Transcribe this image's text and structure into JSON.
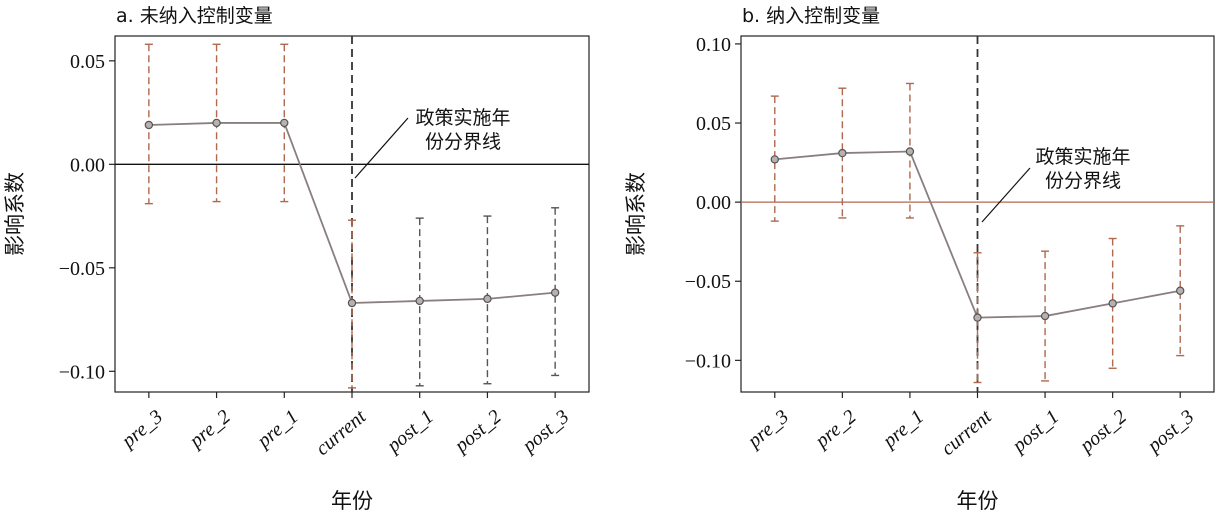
{
  "chart_data": [
    {
      "type": "line",
      "title": "a. 未纳入控制变量",
      "xlabel": "年份",
      "ylabel": "影响系数",
      "categories": [
        "pre_3",
        "pre_2",
        "pre_1",
        "current",
        "post_1",
        "post_2",
        "post_3"
      ],
      "series": [
        {
          "values": [
            0.019,
            0.02,
            0.02,
            -0.067,
            -0.066,
            -0.065,
            -0.062
          ],
          "ci_low": [
            -0.019,
            -0.018,
            -0.018,
            -0.108,
            -0.107,
            -0.106,
            -0.102
          ],
          "ci_high": [
            0.058,
            0.058,
            0.058,
            -0.027,
            -0.026,
            -0.025,
            -0.021
          ]
        }
      ],
      "ylim": [
        -0.11,
        0.062
      ],
      "yticks": [
        0.05,
        0.0,
        -0.05,
        -0.1
      ],
      "ytick_labels": [
        "0.05",
        "0.00",
        "−0.05",
        "−0.10"
      ],
      "reference_line_y": 0,
      "policy_line_category": "current",
      "annotation": {
        "line1": "政策实施年",
        "line2": "份分界线"
      },
      "colors": {
        "line": "#8a7f7f",
        "errorbar_pre": "#b0684e",
        "errorbar_post": "#555555",
        "refline": "#111111",
        "policy": "#333333"
      }
    },
    {
      "type": "line",
      "title": "b. 纳入控制变量",
      "xlabel": "年份",
      "ylabel": "影响系数",
      "categories": [
        "pre_3",
        "pre_2",
        "pre_1",
        "current",
        "post_1",
        "post_2",
        "post_3"
      ],
      "series": [
        {
          "values": [
            0.027,
            0.031,
            0.032,
            -0.073,
            -0.072,
            -0.064,
            -0.056
          ],
          "ci_low": [
            -0.012,
            -0.01,
            -0.01,
            -0.114,
            -0.113,
            -0.105,
            -0.097
          ],
          "ci_high": [
            0.067,
            0.072,
            0.075,
            -0.032,
            -0.031,
            -0.023,
            -0.015
          ]
        }
      ],
      "ylim": [
        -0.12,
        0.105
      ],
      "yticks": [
        0.1,
        0.05,
        0.0,
        -0.05,
        -0.1
      ],
      "ytick_labels": [
        "0.10",
        "0.05",
        "0.00",
        "−0.05",
        "−0.10"
      ],
      "reference_line_y": 0,
      "policy_line_category": "current",
      "annotation": {
        "line1": "政策实施年",
        "line2": "份分界线"
      },
      "colors": {
        "line": "#8a7f7f",
        "errorbar_pre": "#b0684e",
        "errorbar_post": "#b0684e",
        "refline": "#b0684e",
        "policy": "#333333"
      }
    }
  ]
}
